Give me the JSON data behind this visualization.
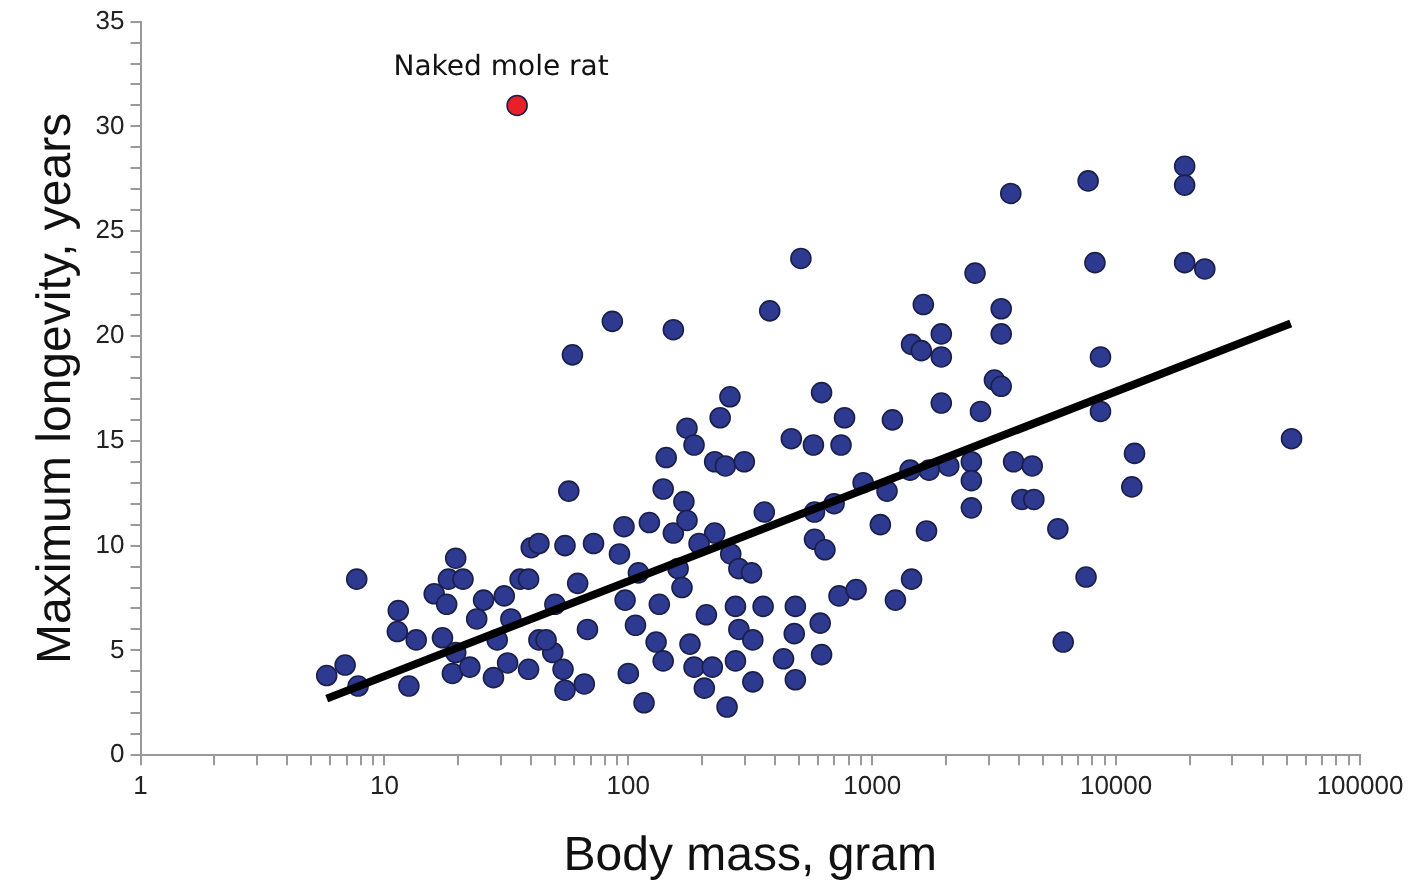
{
  "chart_data": {
    "type": "scatter",
    "xlabel": "Body mass, gram",
    "ylabel": "Maximum longevity, years",
    "log": "x",
    "grid": false,
    "legend": false,
    "marker": "circle",
    "xlim": [
      1,
      100000
    ],
    "ylim": [
      0,
      35
    ],
    "xticks": [
      1,
      {
        "value": 2,
        "label": null
      },
      {
        "value": 3,
        "label": null
      },
      {
        "value": 4,
        "label": null
      },
      {
        "value": 5,
        "label": null
      },
      {
        "value": 6,
        "label": null
      },
      {
        "value": 7,
        "label": null
      },
      {
        "value": 8,
        "label": null
      },
      {
        "value": 9,
        "label": null
      },
      10,
      {
        "value": 20,
        "label": null
      },
      {
        "value": 30,
        "label": null
      },
      {
        "value": 40,
        "label": null
      },
      {
        "value": 50,
        "label": null
      },
      {
        "value": 60,
        "label": null
      },
      {
        "value": 70,
        "label": null
      },
      {
        "value": 80,
        "label": null
      },
      {
        "value": 90,
        "label": null
      },
      100,
      {
        "value": 200,
        "label": null
      },
      {
        "value": 300,
        "label": null
      },
      {
        "value": 400,
        "label": null
      },
      {
        "value": 500,
        "label": null
      },
      {
        "value": 600,
        "label": null
      },
      {
        "value": 700,
        "label": null
      },
      {
        "value": 800,
        "label": null
      },
      {
        "value": 900,
        "label": null
      },
      1000,
      {
        "value": 2000,
        "label": null
      },
      {
        "value": 3000,
        "label": null
      },
      {
        "value": 4000,
        "label": null
      },
      {
        "value": 5000,
        "label": null
      },
      {
        "value": 6000,
        "label": null
      },
      {
        "value": 7000,
        "label": null
      },
      {
        "value": 8000,
        "label": null
      },
      {
        "value": 9000,
        "label": null
      },
      10000,
      {
        "value": 20000,
        "label": null
      },
      {
        "value": 30000,
        "label": null
      },
      {
        "value": 40000,
        "label": null
      },
      {
        "value": 50000,
        "label": null
      },
      {
        "value": 60000,
        "label": null
      },
      {
        "value": 70000,
        "label": null
      },
      {
        "value": 80000,
        "label": null
      },
      {
        "value": 90000,
        "label": null
      },
      100000
    ],
    "yticks": [
      0,
      {
        "value": 1,
        "label": null
      },
      {
        "value": 2,
        "label": null
      },
      {
        "value": 3,
        "label": null
      },
      {
        "value": 4,
        "label": null
      },
      5,
      {
        "value": 6,
        "label": null
      },
      {
        "value": 7,
        "label": null
      },
      {
        "value": 8,
        "label": null
      },
      {
        "value": 9,
        "label": null
      },
      10,
      {
        "value": 11,
        "label": null
      },
      {
        "value": 12,
        "label": null
      },
      {
        "value": 13,
        "label": null
      },
      {
        "value": 14,
        "label": null
      },
      15,
      {
        "value": 16,
        "label": null
      },
      {
        "value": 17,
        "label": null
      },
      {
        "value": 18,
        "label": null
      },
      {
        "value": 19,
        "label": null
      },
      20,
      {
        "value": 21,
        "label": null
      },
      {
        "value": 22,
        "label": null
      },
      {
        "value": 23,
        "label": null
      },
      {
        "value": 24,
        "label": null
      },
      25,
      {
        "value": 26,
        "label": null
      },
      {
        "value": 27,
        "label": null
      },
      {
        "value": 28,
        "label": null
      },
      {
        "value": 29,
        "label": null
      },
      30,
      {
        "value": 31,
        "label": null
      },
      {
        "value": 32,
        "label": null
      },
      {
        "value": 33,
        "label": null
      },
      {
        "value": 34,
        "label": null
      },
      35
    ],
    "annotations": [
      {
        "text": "Naked mole rat",
        "x": 35,
        "y": 31
      }
    ],
    "series": [
      {
        "color": "#2e3a8f",
        "x": [
          5.8,
          6.9,
          7.7,
          7.8,
          11.4,
          11.3,
          12.6,
          13.5,
          16,
          18,
          19.6,
          18.3,
          21,
          17.3,
          19.6,
          19,
          22.4,
          23.9,
          25.5,
          29,
          28,
          31,
          33,
          32,
          36,
          39,
          40,
          43,
          39,
          43,
          57,
          59,
          55,
          55,
          49,
          3700,
          510,
          2640,
          380,
          86,
          153,
          1620,
          3380,
          1920,
          3380,
          1450,
          1590,
          1920,
          3170,
          3380,
          620,
          261,
          1920,
          2780,
          238,
          770,
          1210,
          174,
          186,
          466,
          574,
          745,
          143,
          226,
          250,
          299,
          3800,
          4530,
          2550,
          2060,
          1710,
          1430,
          2550,
          918,
          1150,
          139,
          698,
          2550,
          4110,
          4600,
          169,
          361,
          580,
          1080,
          1670,
          5770,
          96,
          122,
          153,
          174,
          226,
          72,
          92,
          195,
          263,
          580,
          640,
          62,
          110,
          160,
          284,
          320,
          1450,
          50,
          97,
          134,
          166,
          275,
          357,
          484,
          731,
          859,
          1245,
          46,
          68,
          107,
          130,
          179,
          209,
          284,
          324,
          479,
          612,
          54,
          66,
          100,
          139,
          186,
          221,
          275,
          324,
          433,
          484,
          620,
          205,
          116,
          254,
          6070,
          19100,
          19100,
          7680,
          8190,
          19100,
          23100,
          8630,
          8630,
          11900,
          11600,
          52400,
          7530
        ],
        "values": [
          3.8,
          4.3,
          8.4,
          3.3,
          6.9,
          5.9,
          3.3,
          5.5,
          7.7,
          7.2,
          9.4,
          8.4,
          8.4,
          5.6,
          4.9,
          3.9,
          4.2,
          6.5,
          7.4,
          5.5,
          3.7,
          7.6,
          6.5,
          4.4,
          8.4,
          8.4,
          9.9,
          10.1,
          4.1,
          5.5,
          12.6,
          19.1,
          10,
          3.1,
          4.9,
          26.8,
          23.7,
          23,
          21.2,
          20.7,
          20.3,
          21.5,
          21.3,
          20.1,
          20.1,
          19.6,
          19.3,
          19,
          17.9,
          17.6,
          17.3,
          17.1,
          16.8,
          16.4,
          16.1,
          16.1,
          16,
          15.6,
          14.8,
          15.1,
          14.8,
          14.8,
          14.2,
          14,
          13.8,
          14,
          14,
          13.8,
          14,
          13.8,
          13.6,
          13.6,
          13.1,
          13,
          12.6,
          12.7,
          12,
          11.8,
          12.2,
          12.2,
          12.1,
          11.6,
          11.6,
          11,
          10.7,
          10.8,
          10.9,
          11.1,
          10.6,
          11.2,
          10.6,
          10.1,
          9.6,
          10.1,
          9.6,
          10.3,
          9.8,
          8.2,
          8.7,
          8.9,
          8.9,
          8.7,
          8.4,
          7.2,
          7.4,
          7.2,
          8,
          7.1,
          7.1,
          7.1,
          7.6,
          7.9,
          7.4,
          5.5,
          6,
          6.2,
          5.4,
          5.3,
          6.7,
          6,
          5.5,
          5.8,
          6.3,
          4.1,
          3.4,
          3.9,
          4.5,
          4.2,
          4.2,
          4.5,
          3.5,
          4.6,
          3.6,
          4.8,
          3.2,
          2.5,
          2.3,
          5.4,
          28.1,
          27.2,
          27.4,
          23.5,
          23.5,
          23.2,
          19,
          16.4,
          14.4,
          12.8,
          15.1,
          8.5
        ]
      },
      {
        "color": "#e8202a",
        "x": [
          35
        ],
        "values": [
          31
        ]
      },
      {
        "type": "line",
        "color": "#000000",
        "line_style": "solid",
        "marker": "none",
        "x": [
          5.8,
          52000
        ],
        "values": [
          2.7,
          20.6
        ]
      }
    ]
  }
}
